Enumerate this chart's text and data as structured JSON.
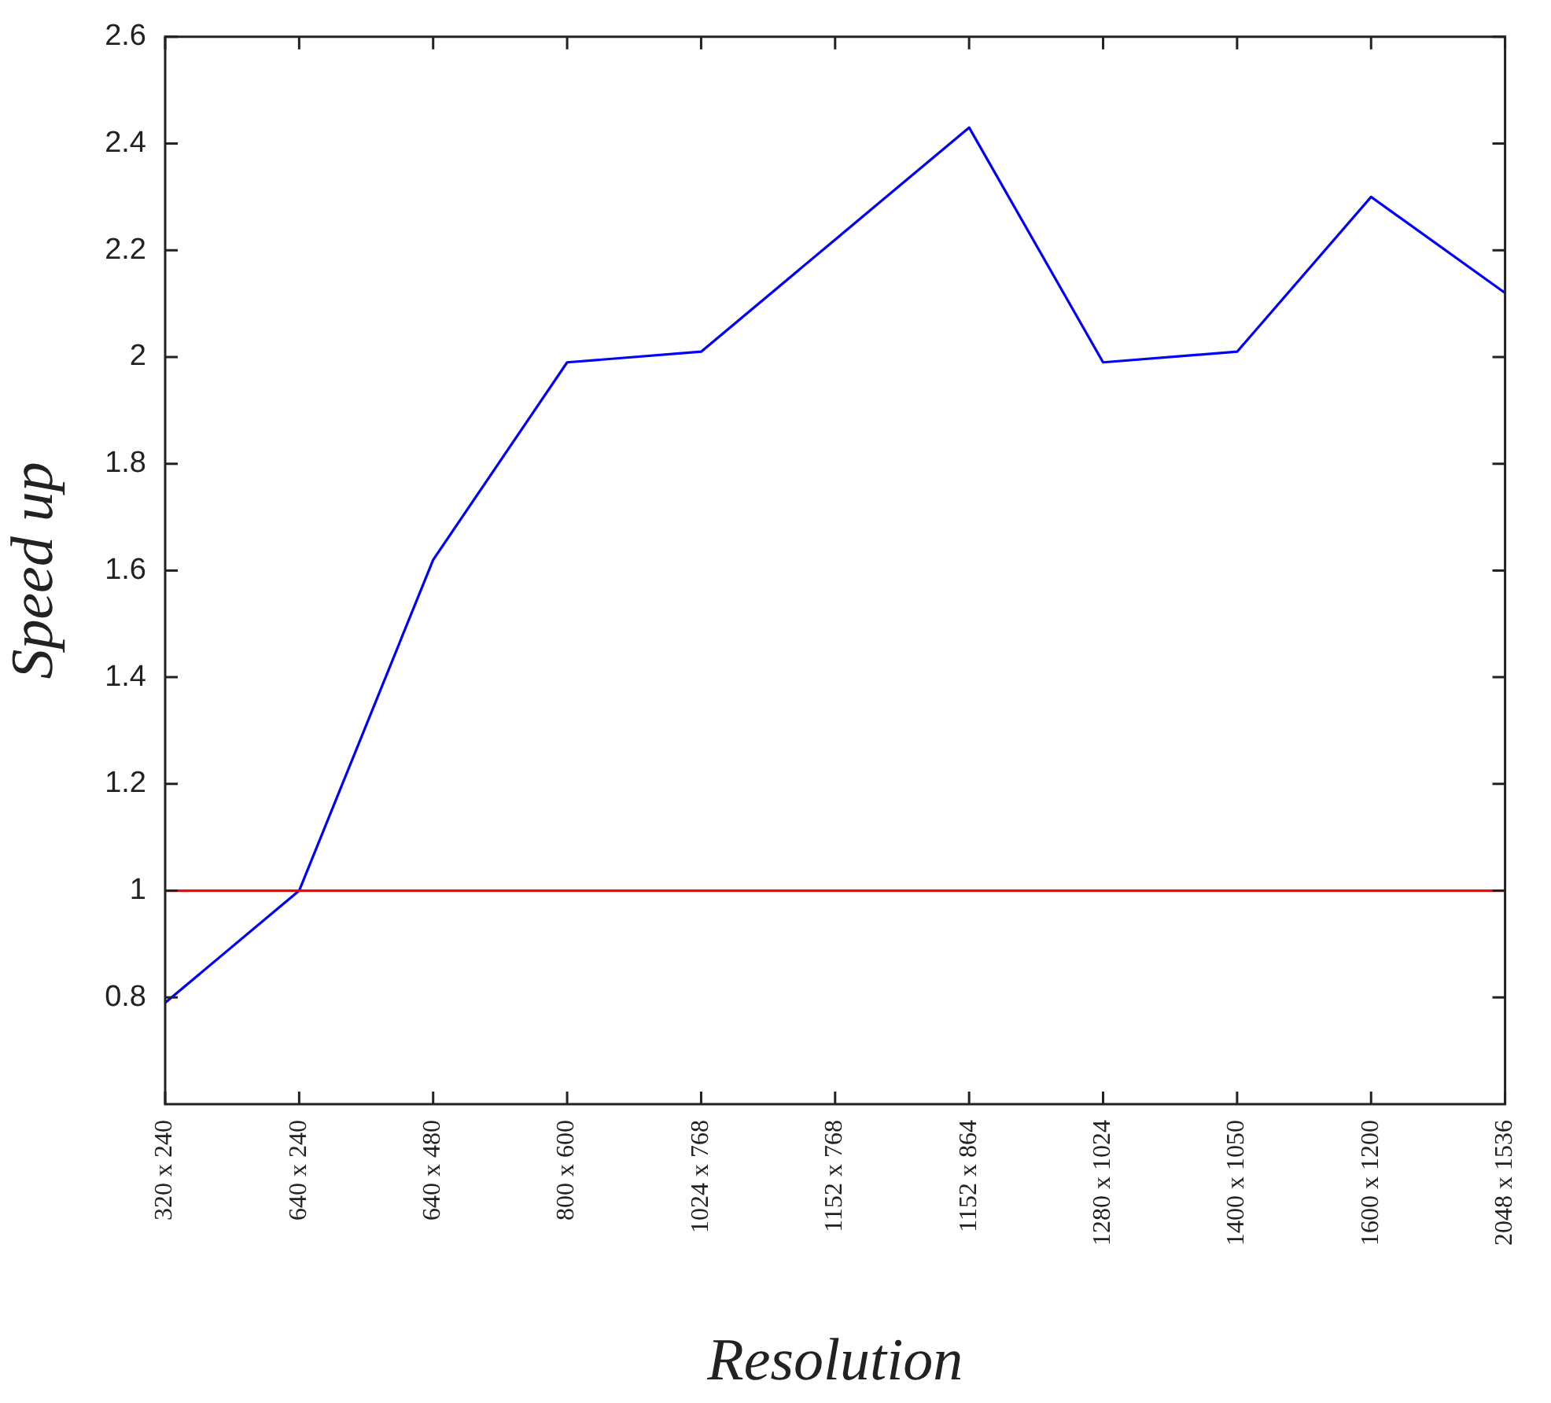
{
  "chart_data": {
    "type": "line",
    "xlabel": "Resolution",
    "ylabel": "Speed up",
    "categories": [
      "320 x 240",
      "640 x 240",
      "640 x 480",
      "800 x 600",
      "1024 x 768",
      "1152 x 768",
      "1152 x 864",
      "1280 x 1024",
      "1400 x 1050",
      "1600 x 1200",
      "2048 x 1536"
    ],
    "series": [
      {
        "color": "#0000ff",
        "values": [
          0.79,
          1.0,
          1.62,
          1.99,
          2.01,
          2.22,
          2.43,
          1.99,
          2.01,
          2.3,
          2.12
        ]
      }
    ],
    "ylim": [
      0.6,
      2.6
    ],
    "yticks": [
      0.8,
      1,
      1.2,
      1.4,
      1.6,
      1.8,
      2,
      2.2,
      2.4,
      2.6
    ],
    "ref_lines": [
      {
        "axis": "y",
        "value": 1,
        "color": "#ff0000"
      }
    ]
  }
}
